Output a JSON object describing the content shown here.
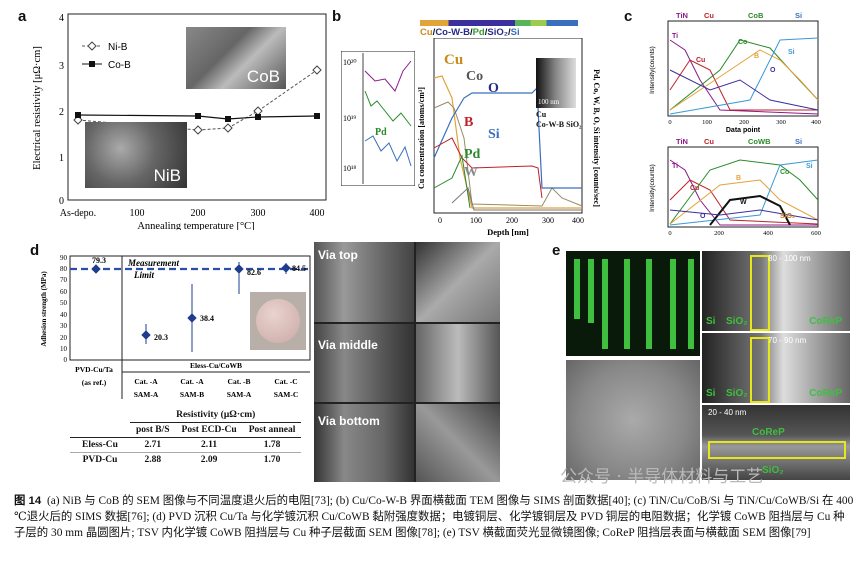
{
  "panels": {
    "a": {
      "label": "a",
      "legend": [
        "Ni-B",
        "Co-B"
      ],
      "ylabel": "Electrical resistivity [μΩ·cm]",
      "xlabel": "Annealing temperature [°C]",
      "yticks": [
        "4",
        "3",
        "2",
        "1",
        "0"
      ],
      "xticks": [
        "As-depo.",
        "100",
        "200",
        "300",
        "400"
      ],
      "inset_cob": "CoB",
      "inset_nib": "NiB"
    },
    "b": {
      "label": "b",
      "header_parts": [
        "Cu",
        "/",
        "Co-W-B",
        "/",
        "Pd",
        "/",
        "SiO₂",
        "/",
        "Si"
      ],
      "inset_ticks": [
        "10²⁰",
        "10¹⁹",
        "10¹⁸"
      ],
      "inset_labels": [
        "Pd"
      ],
      "element_labels": [
        "Cu",
        "Co",
        "O",
        "B",
        "Si",
        "Pd",
        "W"
      ],
      "ylabel_left": "Cu concentration [atoms/cm³]",
      "ylabel_right": "Pd, Co, W, B, O, Si intensity [counts/sec]",
      "xlabel": "Depth [nm]",
      "xticks": [
        "0",
        "100",
        "200",
        "300",
        "400"
      ],
      "tem_scale": "100 nm",
      "tem_labels": [
        "Cu",
        "Co-W-B",
        "SiO₂"
      ]
    },
    "c": {
      "label": "c",
      "top_header": [
        "TiN",
        "Cu",
        "CoB",
        "Si"
      ],
      "top_series_labels": [
        "Ti",
        "Cu",
        "B",
        "Co",
        "Si",
        "O"
      ],
      "bottom_header": [
        "TiN",
        "Cu",
        "CoWB",
        "Si"
      ],
      "bottom_series_labels": [
        "Ti",
        "Cu",
        "B",
        "Co",
        "Si",
        "W",
        "O",
        "SiO₂"
      ],
      "ylabel": "Intensity(counts)",
      "xlabel": "Data point",
      "xticks_top": [
        "0",
        "100",
        "200",
        "300",
        "400"
      ],
      "xticks_bottom": [
        "0",
        "200",
        "400",
        "600"
      ],
      "yticks": [
        "10⁵",
        "10⁴",
        "10³",
        "10²",
        "10¹",
        "10⁰"
      ]
    },
    "d": {
      "label": "d",
      "ylabel": "Adhesion strength (MPa)",
      "yticks": [
        "90",
        "80",
        "70",
        "60",
        "50",
        "40",
        "30",
        "20",
        "10",
        "0"
      ],
      "ref_value": "79.3",
      "measurement": "Measurement",
      "limit": "Limit",
      "points": [
        {
          "label": "20.3",
          "value": 20.3
        },
        {
          "label": "38.4",
          "value": 38.4
        },
        {
          "label": "82.6",
          "value": 82.6
        },
        {
          "label": "84.5",
          "value": 84.5
        }
      ],
      "group_left_1": "PVD-Cu/Ta",
      "group_left_2": "(as ref.)",
      "group_right": "Eless-Cu/CoWB",
      "cats": [
        {
          "cat": "Cat. -A",
          "sam": "SAM-A"
        },
        {
          "cat": "Cat. -A",
          "sam": "SAM-B"
        },
        {
          "cat": "Cat. -B",
          "sam": "SAM-A"
        },
        {
          "cat": "Cat. -C",
          "sam": "SAM-C"
        }
      ],
      "table": {
        "title": "Resistivity (μΩ·cm)",
        "headers": [
          "",
          "post B/S",
          "Post ECD-Cu",
          "Post anneal"
        ],
        "rows": [
          [
            "Eless-Cu",
            "2.71",
            "2.11",
            "1.78"
          ],
          [
            "PVD-Cu",
            "2.88",
            "2.09",
            "1.70"
          ]
        ]
      },
      "via_labels": [
        "Via top",
        "Via middle",
        "Via bottom"
      ]
    },
    "e": {
      "label": "e",
      "sem1": {
        "range": "80 - 100 nm",
        "labels": [
          "Si",
          "SiO₂",
          "CoReP"
        ]
      },
      "sem2": {
        "range": "70 - 90 nm",
        "labels": [
          "Si",
          "SiO₂",
          "CoReP"
        ]
      },
      "sem3": {
        "range": "20 - 40 nm",
        "labels": [
          "CoReP",
          "SiO₂"
        ]
      }
    }
  },
  "caption": {
    "fig": "图 14",
    "text": "(a) NiB 与 CoB 的 SEM 图像与不同温度退火后的电阻[73]; (b) Cu/Co-W-B 界面横截面 TEM 图像与 SIMS 剖面数据[40]; (c) TiN/Cu/CoB/Si 与 TiN/Cu/CoWB/Si 在 400 ℃退火后的 SIMS 数据[76]; (d) PVD 沉积 Cu/Ta 与化学镀沉积 Cu/CoWB 黏附强度数据；电镀铜层、化学镀铜层及 PVD 铜层的电阻数据；化学镀 CoWB 阻挡层与 Cu 种子层的 30 mm 晶圆图片; TSV 内化学镀 CoWB 阻挡层与 Cu 种子层截面 SEM 图像[78]; (e) TSV 横截面荧光显微镜图像; CoReP 阻挡层表面与横截面 SEM 图像[79]"
  },
  "watermark": "公众号 · 半导体材料与工艺"
}
